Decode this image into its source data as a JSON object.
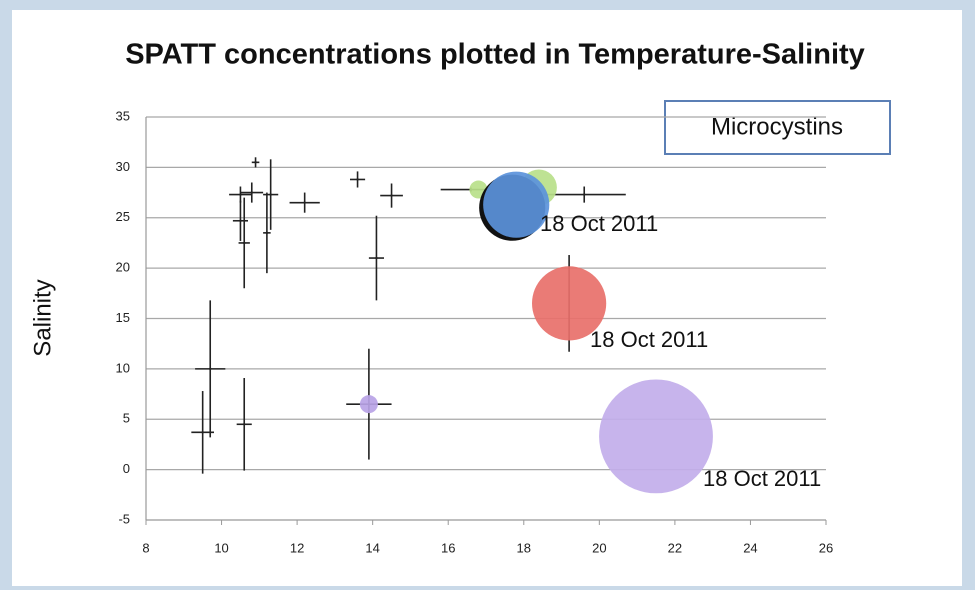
{
  "chart_data": {
    "type": "scatter",
    "title": "SPATT concentrations plotted in Temperature-Salinity",
    "ylabel": "Salinity",
    "legend": "Microcystins",
    "annotations": [
      "18 Oct 2011",
      "18 Oct 2011",
      "18 Oct 2011"
    ],
    "x": [
      9.5,
      9.7,
      10.6,
      10.6,
      10.5,
      10.5,
      10.8,
      10.9,
      11.2,
      11.3,
      12.2,
      13.6,
      14.1,
      14.5,
      16.6,
      19.6,
      13.9,
      16.8,
      18.4,
      17.8,
      19.2,
      21.5
    ],
    "y": [
      3.7,
      10,
      4.5,
      22.5,
      24.7,
      27.3,
      27.5,
      30.5,
      23.5,
      27.3,
      26.5,
      28.8,
      21,
      27.2,
      27.8,
      27.3,
      6.5,
      27.8,
      28,
      26.3,
      16.5,
      3.3
    ],
    "xerr": [
      0.3,
      0.4,
      0.2,
      0.15,
      0.2,
      0.3,
      0.3,
      0.1,
      0.1,
      0.2,
      0.4,
      0.2,
      0.2,
      0.3,
      0.8,
      1.1,
      0.6,
      null,
      null,
      null,
      null,
      null
    ],
    "yerr": [
      4.1,
      6.8,
      4.6,
      4.5,
      2,
      0.8,
      1,
      0.5,
      4,
      3.5,
      1,
      0.8,
      4.2,
      1.2,
      0.2,
      0.8,
      5.5,
      null,
      null,
      null,
      4.8,
      null
    ],
    "sizes": [
      null,
      null,
      null,
      null,
      null,
      null,
      null,
      null,
      null,
      null,
      null,
      null,
      null,
      null,
      null,
      null,
      1,
      1,
      4,
      13.5,
      17,
      40
    ],
    "colors": [
      null,
      null,
      null,
      null,
      null,
      null,
      null,
      null,
      null,
      null,
      null,
      null,
      null,
      null,
      null,
      null,
      "#b9a3e6",
      "#b8e08a",
      "#b8e08a",
      "#5b93db",
      "#e8706a",
      "#c2aeea"
    ],
    "xlim": [
      8,
      26
    ],
    "ylim": [
      -5,
      35
    ],
    "xticks": [
      8,
      10,
      12,
      14,
      16,
      18,
      20,
      22,
      24,
      26
    ],
    "yticks": [
      -5,
      0,
      5,
      10,
      15,
      20,
      25,
      30,
      35
    ],
    "grid": true
  }
}
